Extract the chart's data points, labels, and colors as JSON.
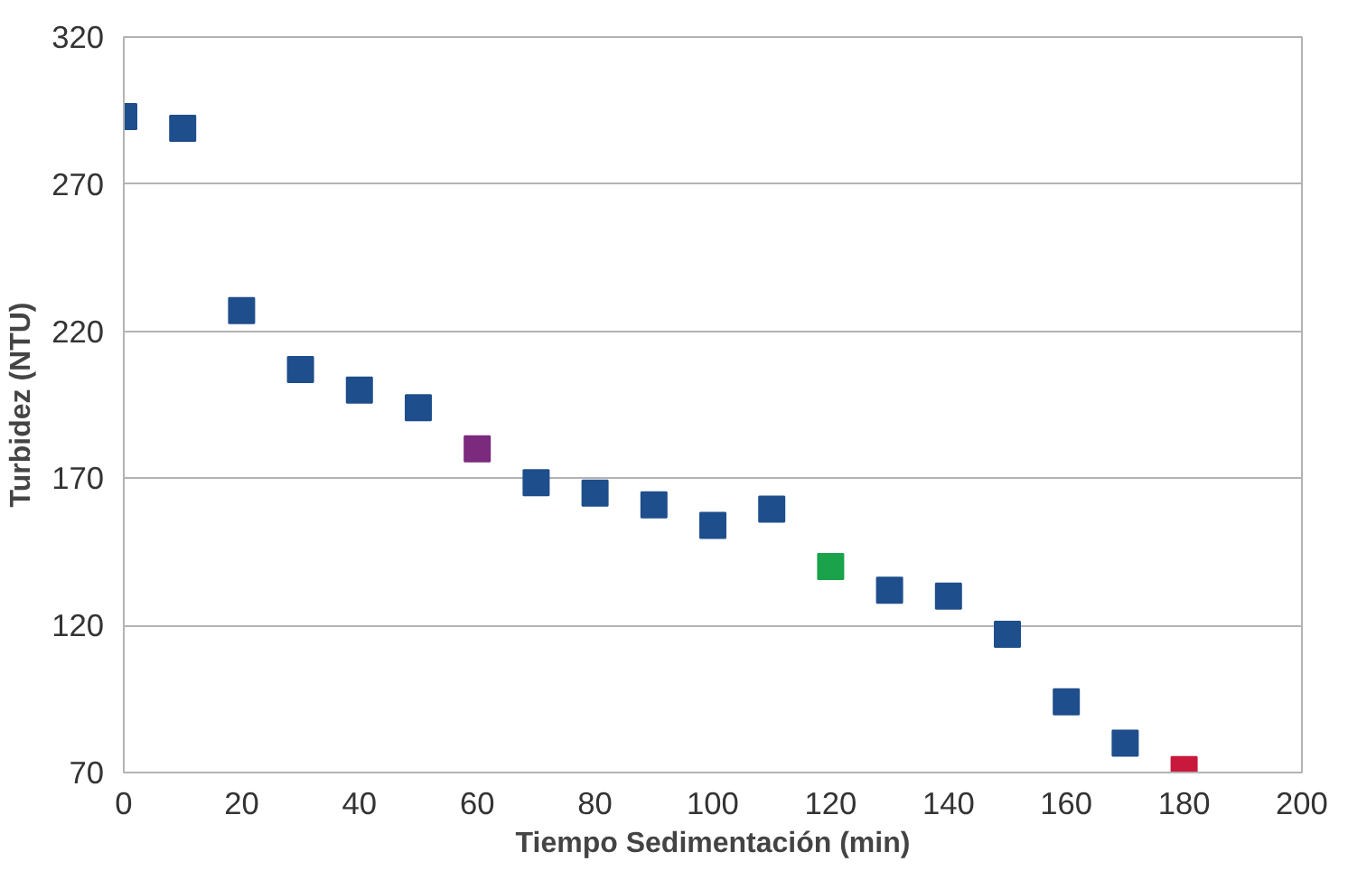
{
  "chart_data": {
    "type": "scatter",
    "xlabel": "Tiempo Sedimentación (min)",
    "ylabel": "Turbidez (NTU)",
    "x": [
      0,
      10,
      20,
      30,
      40,
      50,
      60,
      70,
      80,
      90,
      100,
      110,
      120,
      130,
      140,
      150,
      160,
      170,
      180
    ],
    "values": [
      293,
      289,
      227,
      207,
      200,
      194,
      180,
      168.5,
      165,
      161,
      154,
      159.5,
      140,
      132,
      130,
      117,
      94,
      80,
      71
    ],
    "colors": [
      "#1f4e8c",
      "#1f4e8c",
      "#1f4e8c",
      "#1f4e8c",
      "#1f4e8c",
      "#1f4e8c",
      "#7b2a7e",
      "#1f4e8c",
      "#1f4e8c",
      "#1f4e8c",
      "#1f4e8c",
      "#1f4e8c",
      "#1aa34a",
      "#1f4e8c",
      "#1f4e8c",
      "#1f4e8c",
      "#1f4e8c",
      "#1f4e8c",
      "#c8193c"
    ],
    "xlim": [
      0,
      200
    ],
    "xticks": [
      0,
      20,
      40,
      60,
      80,
      100,
      120,
      140,
      160,
      180,
      200
    ],
    "ylim": [
      70,
      320
    ],
    "yticks": [
      70,
      120,
      170,
      220,
      270,
      320
    ],
    "grid": "y",
    "marker": "square"
  }
}
